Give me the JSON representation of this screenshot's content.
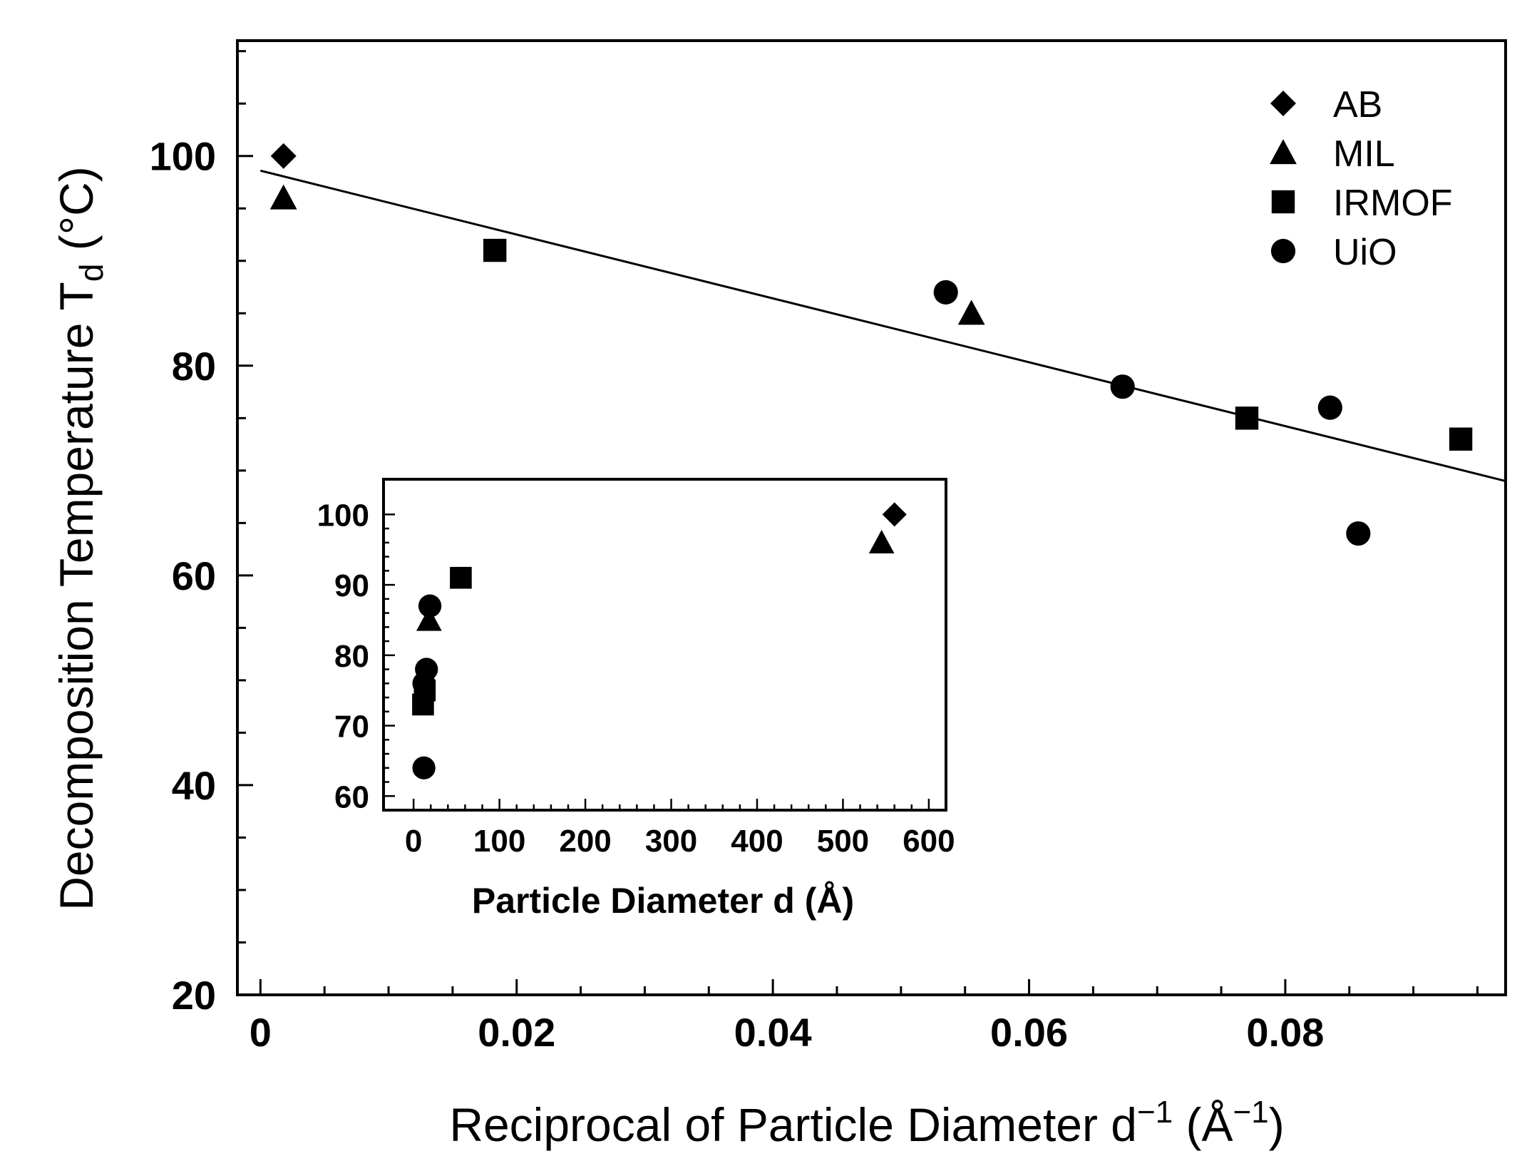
{
  "chart_data": [
    {
      "id": "main",
      "type": "scatter",
      "title": "",
      "xlabel": "Reciprocal of Particle Diameter d⁻¹ (Å⁻¹)",
      "xlabel_parts": {
        "main": "Reciprocal of Particle Diameter d",
        "exp1": "−1",
        "mid": " (Å",
        "exp2": "−1",
        "end": ")"
      },
      "ylabel": "Decomposition Temperature Td (°C)",
      "ylabel_parts": {
        "main": "Decomposition Temperature T",
        "sub": "d",
        "end": " (°C)"
      },
      "xlim": [
        -0.0018,
        0.0972
      ],
      "ylim": [
        20,
        111
      ],
      "xticks": [
        0,
        0.02,
        0.04,
        0.06,
        0.08
      ],
      "xtick_labels": [
        "0",
        "0.02",
        "0.04",
        "0.06",
        "0.08"
      ],
      "yticks": [
        20,
        40,
        60,
        80,
        100
      ],
      "ytick_labels": [
        "20",
        "40",
        "60",
        "80",
        "100"
      ],
      "legend_position": "top-right",
      "series": [
        {
          "name": "AB",
          "marker": "diamond",
          "points": [
            [
              0.0018,
              100
            ]
          ]
        },
        {
          "name": "MIL",
          "marker": "triangle",
          "points": [
            [
              0.0018,
              96
            ],
            [
              0.0555,
              85
            ]
          ]
        },
        {
          "name": "IRMOF",
          "marker": "square",
          "points": [
            [
              0.0183,
              91
            ],
            [
              0.077,
              75
            ],
            [
              0.0937,
              73
            ]
          ]
        },
        {
          "name": "UiO",
          "marker": "circle",
          "points": [
            [
              0.0535,
              87
            ],
            [
              0.0673,
              78
            ],
            [
              0.0835,
              76
            ],
            [
              0.0857,
              64
            ]
          ]
        }
      ],
      "fit_line": {
        "x": [
          0,
          0.0972
        ],
        "y": [
          98.6,
          69.0
        ]
      }
    },
    {
      "id": "inset",
      "type": "scatter",
      "xlabel": "Particle Diameter d (Å)",
      "ylabel": "",
      "xlim": [
        -35,
        620
      ],
      "ylim": [
        58,
        105
      ],
      "xticks": [
        0,
        100,
        200,
        300,
        400,
        500,
        600
      ],
      "xtick_labels": [
        "0",
        "100",
        "200",
        "300",
        "400",
        "500",
        "600"
      ],
      "yticks": [
        60,
        70,
        80,
        90,
        100
      ],
      "ytick_labels": [
        "60",
        "70",
        "80",
        "90",
        "100"
      ],
      "series": [
        {
          "name": "AB",
          "marker": "diamond",
          "points": [
            [
              560,
              100
            ]
          ]
        },
        {
          "name": "MIL",
          "marker": "triangle",
          "points": [
            [
              545,
              96
            ],
            [
              18,
              85
            ]
          ]
        },
        {
          "name": "IRMOF",
          "marker": "square",
          "points": [
            [
              55,
              91
            ],
            [
              13,
              75
            ],
            [
              11,
              73
            ]
          ]
        },
        {
          "name": "UiO",
          "marker": "circle",
          "points": [
            [
              19,
              87
            ],
            [
              15,
              78
            ],
            [
              12,
              76
            ],
            [
              12,
              64
            ]
          ]
        }
      ]
    }
  ],
  "legend": {
    "items": [
      {
        "label": "AB",
        "marker": "diamond"
      },
      {
        "label": "MIL",
        "marker": "triangle"
      },
      {
        "label": "IRMOF",
        "marker": "square"
      },
      {
        "label": "UiO",
        "marker": "circle"
      }
    ]
  },
  "colors": {
    "ink": "#000000",
    "background": "#ffffff"
  }
}
